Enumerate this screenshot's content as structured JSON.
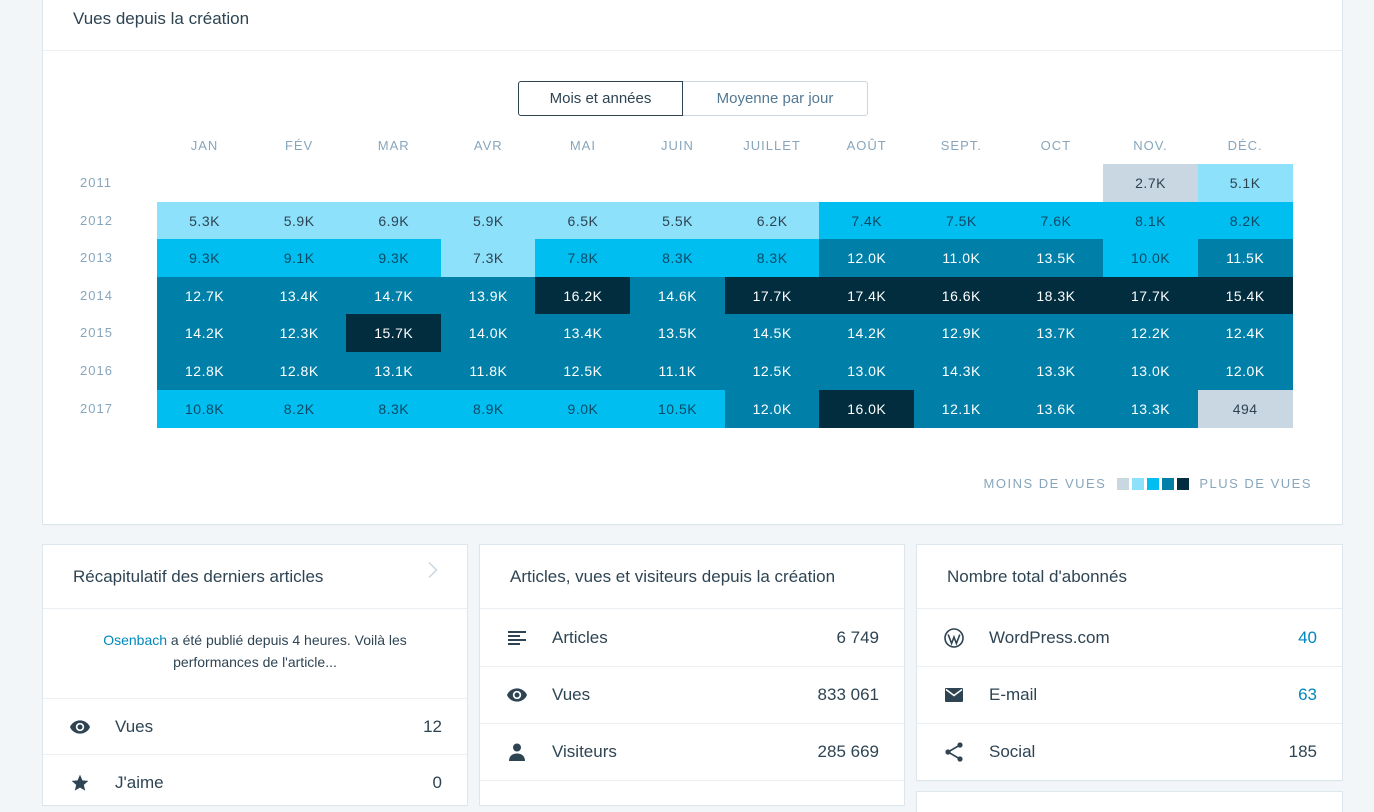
{
  "views_card": {
    "title": "Vues depuis la création",
    "toggle": {
      "months_years": "Mois et années",
      "daily_average": "Moyenne par jour"
    },
    "months": [
      "JAN",
      "FÉV",
      "MAR",
      "AVR",
      "MAI",
      "JUIN",
      "JUILLET",
      "AOÛT",
      "SEPT.",
      "OCT",
      "NOV.",
      "DÉC."
    ],
    "years": [
      "2011",
      "2012",
      "2013",
      "2014",
      "2015",
      "2016",
      "2017"
    ],
    "legend": {
      "less": "MOINS DE VUES",
      "more": "PLUS DE VUES"
    },
    "level_colors": [
      "#c8d7e1",
      "#8ee1fa",
      "#00bef0",
      "#0080a8",
      "#012d3f"
    ]
  },
  "chart_data": {
    "type": "heatmap",
    "x": [
      "JAN",
      "FÉV",
      "MAR",
      "AVR",
      "MAI",
      "JUIN",
      "JUILLET",
      "AOÛT",
      "SEPT.",
      "OCT",
      "NOV.",
      "DÉC."
    ],
    "y": [
      "2011",
      "2012",
      "2013",
      "2014",
      "2015",
      "2016",
      "2017"
    ],
    "labels": [
      [
        "",
        "",
        "",
        "",
        "",
        "",
        "",
        "",
        "",
        "",
        "2.7K",
        "5.1K"
      ],
      [
        "5.3K",
        "5.9K",
        "6.9K",
        "5.9K",
        "6.5K",
        "5.5K",
        "6.2K",
        "7.4K",
        "7.5K",
        "7.6K",
        "8.1K",
        "8.2K"
      ],
      [
        "9.3K",
        "9.1K",
        "9.3K",
        "7.3K",
        "7.8K",
        "8.3K",
        "8.3K",
        "12.0K",
        "11.0K",
        "13.5K",
        "10.0K",
        "11.5K"
      ],
      [
        "12.7K",
        "13.4K",
        "14.7K",
        "13.9K",
        "16.2K",
        "14.6K",
        "17.7K",
        "17.4K",
        "16.6K",
        "18.3K",
        "17.7K",
        "15.4K"
      ],
      [
        "14.2K",
        "12.3K",
        "15.7K",
        "14.0K",
        "13.4K",
        "13.5K",
        "14.5K",
        "14.2K",
        "12.9K",
        "13.7K",
        "12.2K",
        "12.4K"
      ],
      [
        "12.8K",
        "12.8K",
        "13.1K",
        "11.8K",
        "12.5K",
        "11.1K",
        "12.5K",
        "13.0K",
        "14.3K",
        "13.3K",
        "13.0K",
        "12.0K"
      ],
      [
        "10.8K",
        "8.2K",
        "8.3K",
        "8.9K",
        "9.0K",
        "10.5K",
        "12.0K",
        "16.0K",
        "12.1K",
        "13.6K",
        "13.3K",
        "494"
      ]
    ],
    "levels": [
      [
        null,
        null,
        null,
        null,
        null,
        null,
        null,
        null,
        null,
        null,
        0,
        1
      ],
      [
        1,
        1,
        1,
        1,
        1,
        1,
        1,
        2,
        2,
        2,
        2,
        2
      ],
      [
        2,
        2,
        2,
        1,
        2,
        2,
        2,
        3,
        3,
        3,
        2,
        3
      ],
      [
        3,
        3,
        3,
        3,
        4,
        3,
        4,
        4,
        4,
        4,
        4,
        4
      ],
      [
        3,
        3,
        4,
        3,
        3,
        3,
        3,
        3,
        3,
        3,
        3,
        3
      ],
      [
        3,
        3,
        3,
        3,
        3,
        3,
        3,
        3,
        3,
        3,
        3,
        3
      ],
      [
        2,
        2,
        2,
        2,
        2,
        2,
        3,
        4,
        3,
        3,
        3,
        0
      ]
    ]
  },
  "recap_card": {
    "title": "Récapitulatif des derniers articles",
    "notice_link": "Osenbach",
    "notice_text": " a été publié depuis 4 heures. Voilà les performances de l'article...",
    "rows": [
      {
        "icon": "eye-icon",
        "label": "Vues",
        "value": "12"
      },
      {
        "icon": "star-icon",
        "label": "J'aime",
        "value": "0"
      }
    ]
  },
  "totals_card": {
    "title": "Articles, vues et visiteurs depuis la création",
    "rows": [
      {
        "icon": "posts-icon",
        "label": "Articles",
        "value": "6 749"
      },
      {
        "icon": "eye-icon",
        "label": "Vues",
        "value": "833 061"
      },
      {
        "icon": "person-icon",
        "label": "Visiteurs",
        "value": "285 669"
      }
    ]
  },
  "followers_card": {
    "title": "Nombre total d'abonnés",
    "rows": [
      {
        "icon": "wordpress-icon",
        "label": "WordPress.com",
        "value": "40"
      },
      {
        "icon": "mail-icon",
        "label": "E-mail",
        "value": "63"
      },
      {
        "icon": "share-icon",
        "label": "Social",
        "value": "185"
      }
    ]
  }
}
